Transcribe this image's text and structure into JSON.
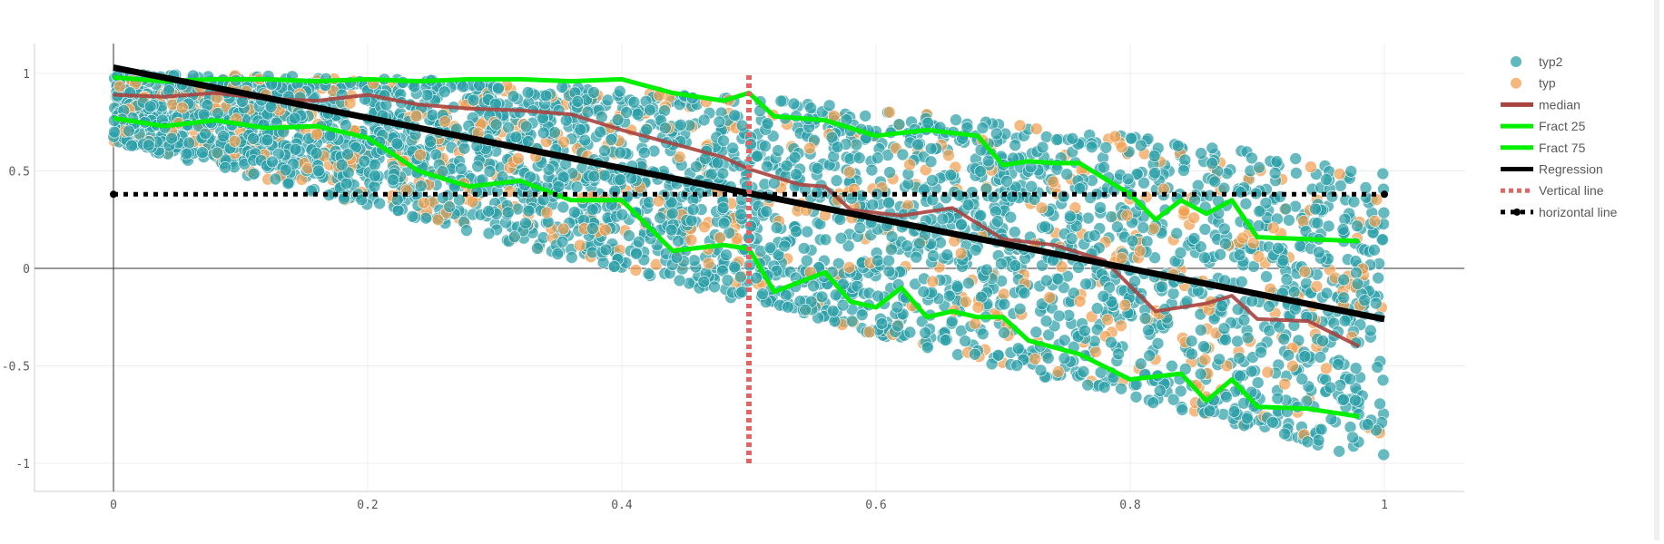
{
  "chart_data": {
    "type": "scatter",
    "title": "",
    "xlabel": "",
    "ylabel": "",
    "xlim": [
      0,
      1
    ],
    "ylim": [
      -1,
      1
    ],
    "x_ticks": [
      "0",
      "0.2",
      "0.4",
      "0.6",
      "0.8",
      "1"
    ],
    "y_ticks": [
      "1",
      "0.5",
      "0",
      "-0.5",
      "-1"
    ],
    "grid": true,
    "legend_position": "top-right",
    "series": [
      {
        "name": "typ2",
        "kind": "scatter",
        "color": "#2ca0a8",
        "description_points": "dense cloud between upper bound y=1-0.5x^2 and lower bound y=0.65-1.65x"
      },
      {
        "name": "typ",
        "kind": "scatter",
        "color": "#f0a050"
      },
      {
        "name": "median",
        "kind": "line",
        "color": "#a8433f",
        "x": [
          0,
          0.04,
          0.08,
          0.12,
          0.16,
          0.2,
          0.24,
          0.28,
          0.32,
          0.36,
          0.4,
          0.44,
          0.48,
          0.5,
          0.54,
          0.56,
          0.58,
          0.62,
          0.66,
          0.7,
          0.74,
          0.78,
          0.82,
          0.86,
          0.88,
          0.9,
          0.94,
          0.98
        ],
        "y": [
          0.89,
          0.88,
          0.9,
          0.87,
          0.86,
          0.89,
          0.84,
          0.82,
          0.81,
          0.79,
          0.71,
          0.64,
          0.57,
          0.51,
          0.43,
          0.42,
          0.3,
          0.27,
          0.31,
          0.15,
          0.12,
          0.04,
          -0.22,
          -0.18,
          -0.14,
          -0.26,
          -0.27,
          -0.4
        ]
      },
      {
        "name": "Fract 25",
        "kind": "line",
        "color": "#00f000",
        "x": [
          0,
          0.04,
          0.08,
          0.12,
          0.16,
          0.2,
          0.24,
          0.28,
          0.32,
          0.36,
          0.4,
          0.44,
          0.48,
          0.5,
          0.52,
          0.56,
          0.6,
          0.64,
          0.68,
          0.7,
          0.72,
          0.74,
          0.76,
          0.8,
          0.82,
          0.84,
          0.86,
          0.88,
          0.9,
          0.94,
          0.98
        ],
        "y": [
          0.98,
          0.96,
          0.97,
          0.97,
          0.96,
          0.97,
          0.96,
          0.97,
          0.97,
          0.96,
          0.97,
          0.9,
          0.86,
          0.9,
          0.78,
          0.76,
          0.68,
          0.71,
          0.68,
          0.53,
          0.55,
          0.54,
          0.54,
          0.38,
          0.25,
          0.35,
          0.28,
          0.35,
          0.16,
          0.15,
          0.14
        ]
      },
      {
        "name": "Fract 75",
        "kind": "line",
        "color": "#00f000",
        "x": [
          0,
          0.04,
          0.08,
          0.12,
          0.16,
          0.2,
          0.24,
          0.28,
          0.32,
          0.36,
          0.4,
          0.44,
          0.48,
          0.5,
          0.52,
          0.56,
          0.58,
          0.6,
          0.62,
          0.64,
          0.66,
          0.68,
          0.7,
          0.72,
          0.76,
          0.8,
          0.84,
          0.86,
          0.88,
          0.9,
          0.94,
          0.98
        ],
        "y": [
          0.77,
          0.73,
          0.76,
          0.72,
          0.73,
          0.67,
          0.5,
          0.42,
          0.45,
          0.35,
          0.35,
          0.09,
          0.12,
          0.1,
          -0.12,
          -0.02,
          -0.17,
          -0.2,
          -0.1,
          -0.25,
          -0.22,
          -0.25,
          -0.25,
          -0.37,
          -0.44,
          -0.57,
          -0.54,
          -0.68,
          -0.57,
          -0.71,
          -0.72,
          -0.76
        ]
      },
      {
        "name": "Regression",
        "kind": "line",
        "color": "#000000",
        "x": [
          0,
          1
        ],
        "y": [
          1.03,
          -0.26
        ]
      },
      {
        "name": "Vertical line",
        "kind": "line",
        "color": "#e06666",
        "x": [
          0.5,
          0.5
        ],
        "y": [
          -1,
          1
        ]
      },
      {
        "name": "horizontal line",
        "kind": "line",
        "color": "#000000",
        "x": [
          0,
          1
        ],
        "y": [
          0.38,
          0.38
        ]
      }
    ]
  }
}
